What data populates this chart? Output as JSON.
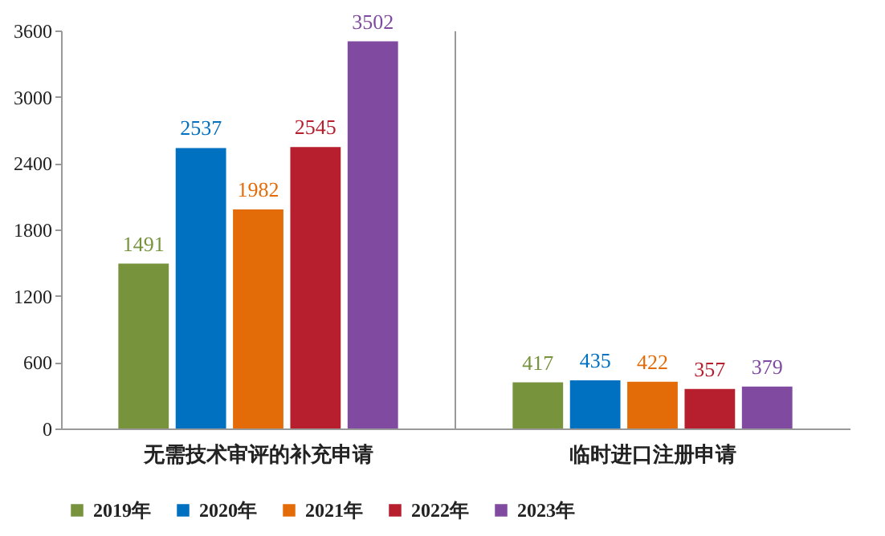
{
  "chart_data": {
    "type": "bar",
    "categories": [
      "无需技术审评的补充申请",
      "临时进口注册申请"
    ],
    "series": [
      {
        "name": "2019年",
        "color": "#77933c",
        "values": [
          1491,
          417
        ]
      },
      {
        "name": "2020年",
        "color": "#0070c0",
        "values": [
          2537,
          435
        ]
      },
      {
        "name": "2021年",
        "color": "#e36c09",
        "values": [
          1982,
          422
        ]
      },
      {
        "name": "2022年",
        "color": "#b71f2e",
        "values": [
          2545,
          357
        ]
      },
      {
        "name": "2023年",
        "color": "#7f4aa0",
        "values": [
          3502,
          379
        ]
      }
    ],
    "ylim": [
      0,
      3600
    ],
    "yticks": [
      0,
      600,
      1200,
      1800,
      2400,
      3000,
      3600
    ],
    "grid": "x",
    "legend": "bottom",
    "data_labels": true
  }
}
